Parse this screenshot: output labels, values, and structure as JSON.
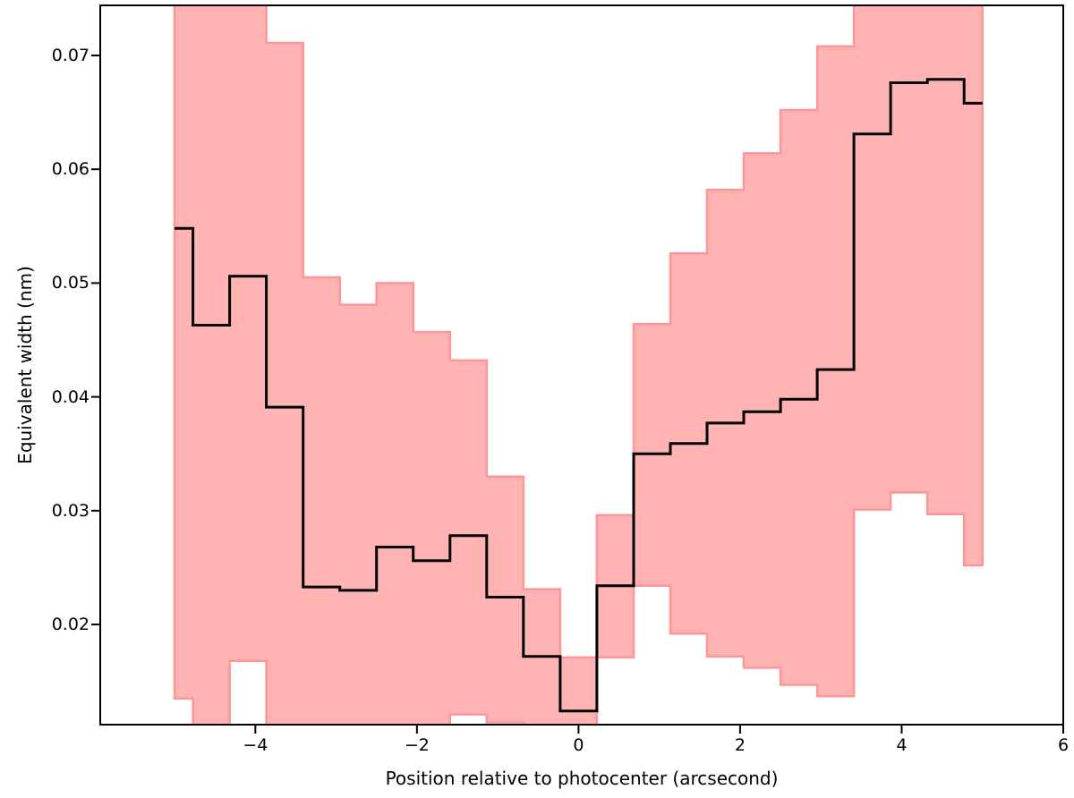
{
  "chart_data": {
    "type": "line",
    "subtype": "step-mid-with-confidence-band",
    "title": "",
    "xlabel": "Position relative to photocenter (arcsecond)",
    "ylabel": "Equivalent width (nm)",
    "xlim": [
      -5.92,
      6.0
    ],
    "ylim": [
      0.0112,
      0.0744
    ],
    "grid": false,
    "legend": "none",
    "xticks": [
      {
        "v": -4,
        "label": "−4"
      },
      {
        "v": -2,
        "label": "−2"
      },
      {
        "v": 0,
        "label": "0"
      },
      {
        "v": 2,
        "label": "2"
      },
      {
        "v": 4,
        "label": "4"
      },
      {
        "v": 6,
        "label": "6"
      }
    ],
    "yticks": [
      {
        "v": 0.02,
        "label": "0.02"
      },
      {
        "v": 0.03,
        "label": "0.03"
      },
      {
        "v": 0.04,
        "label": "0.04"
      },
      {
        "v": 0.05,
        "label": "0.05"
      },
      {
        "v": 0.06,
        "label": "0.06"
      },
      {
        "v": 0.07,
        "label": "0.07"
      }
    ],
    "x": [
      -5.0,
      -4.545,
      -4.091,
      -3.636,
      -3.182,
      -2.727,
      -2.273,
      -1.818,
      -1.364,
      -0.909,
      -0.455,
      0.0,
      0.455,
      0.909,
      1.364,
      1.818,
      2.273,
      2.727,
      3.182,
      3.636,
      4.091,
      4.545,
      5.0
    ],
    "series": [
      {
        "name": "equivalent-width-step-line",
        "color": "#000000",
        "line_width": 3,
        "values": [
          0.0548,
          0.0463,
          0.0506,
          0.0391,
          0.0233,
          0.023,
          0.0268,
          0.0256,
          0.0278,
          0.0224,
          0.0172,
          0.0124,
          0.0234,
          0.035,
          0.0359,
          0.0377,
          0.0387,
          0.0398,
          0.0424,
          0.0631,
          0.0676,
          0.0679,
          0.0658
        ]
      }
    ],
    "band": {
      "name": "uncertainty-band",
      "fill_color": "#ffb3b3",
      "edge_color": "#ff9596",
      "clipped_note": "null = band edge extends beyond plotted y-range (clipped at axes)",
      "upper": [
        null,
        null,
        null,
        0.0711,
        0.0505,
        0.0481,
        0.05,
        0.0457,
        0.0432,
        0.033,
        0.0231,
        0.0171,
        0.0296,
        0.0464,
        0.0526,
        0.0582,
        0.0614,
        0.0652,
        0.0708,
        null,
        null,
        null,
        null
      ],
      "lower": [
        0.0135,
        null,
        0.0168,
        null,
        null,
        null,
        null,
        null,
        0.0121,
        0.0114,
        null,
        null,
        0.0171,
        0.0234,
        0.0192,
        0.0172,
        0.0162,
        0.0147,
        0.0137,
        0.0301,
        0.0316,
        0.0297,
        0.0252
      ]
    }
  }
}
